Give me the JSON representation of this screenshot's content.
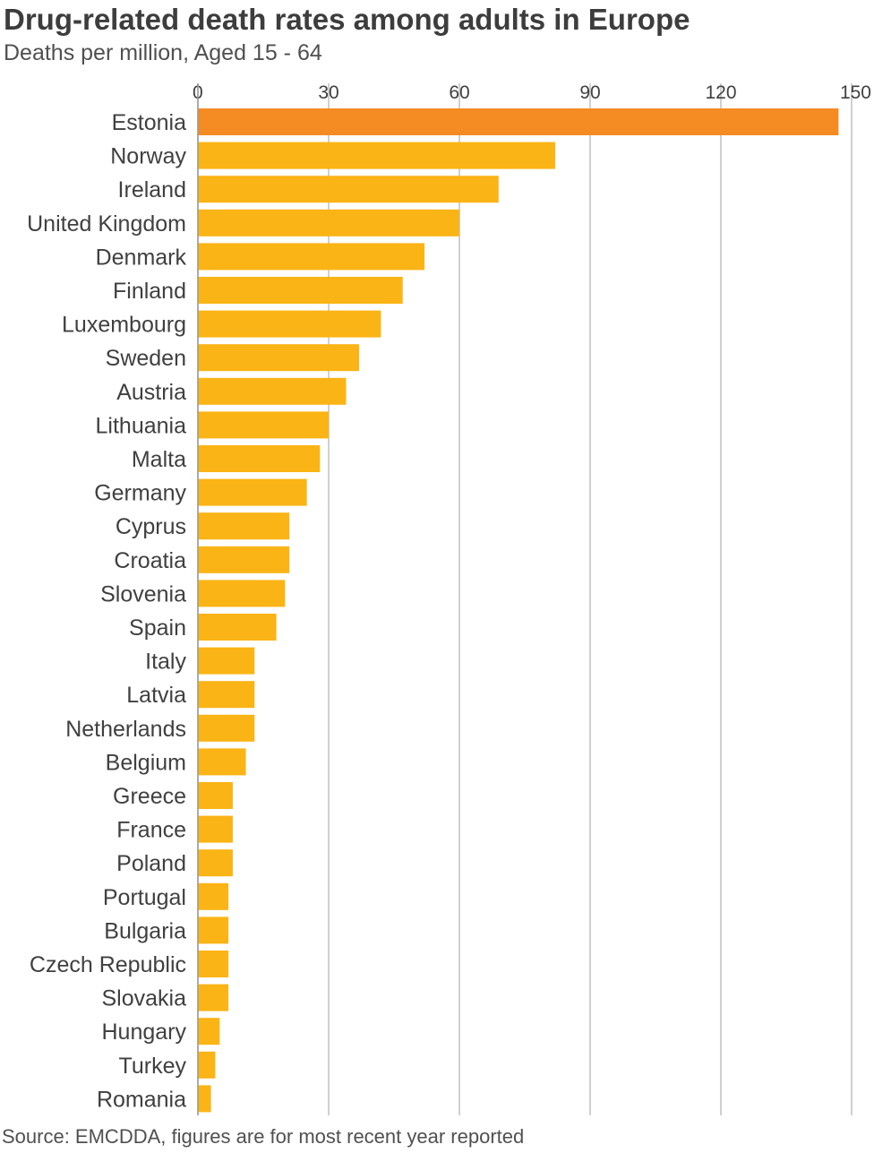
{
  "title": "Drug-related death rates among adults in Europe",
  "subtitle": "Deaths per million, Aged 15 - 64",
  "source": "Source: EMCDDA, figures are for most recent year reported",
  "colors": {
    "highlight": "#f48b23",
    "bar": "#fbb415",
    "grid": "#c0c0c0",
    "text": "#404040"
  },
  "chart_data": {
    "type": "bar",
    "orientation": "horizontal",
    "title": "Drug-related death rates among adults in Europe",
    "subtitle": "Deaths per million, Aged 15 - 64",
    "xlabel": "",
    "ylabel": "",
    "xlim": [
      0,
      150
    ],
    "x_ticks": [
      0,
      30,
      60,
      90,
      120,
      150
    ],
    "x_tick_labels": [
      "0",
      "30",
      "60",
      "90",
      "120",
      "150"
    ],
    "x_axis_position": "top",
    "grid": true,
    "highlighted_category": "Estonia",
    "categories": [
      "Estonia",
      "Norway",
      "Ireland",
      "United Kingdom",
      "Denmark",
      "Finland",
      "Luxembourg",
      "Sweden",
      "Austria",
      "Lithuania",
      "Malta",
      "Germany",
      "Cyprus",
      "Croatia",
      "Slovenia",
      "Spain",
      "Italy",
      "Latvia",
      "Netherlands",
      "Belgium",
      "Greece",
      "France",
      "Poland",
      "Portugal",
      "Bulgaria",
      "Czech Republic",
      "Slovakia",
      "Hungary",
      "Turkey",
      "Romania"
    ],
    "values": [
      147,
      82,
      69,
      60,
      52,
      47,
      42,
      37,
      34,
      30,
      28,
      25,
      21,
      21,
      20,
      18,
      13,
      13,
      13,
      11,
      8,
      8,
      8,
      7,
      7,
      7,
      7,
      5,
      4,
      3
    ]
  }
}
